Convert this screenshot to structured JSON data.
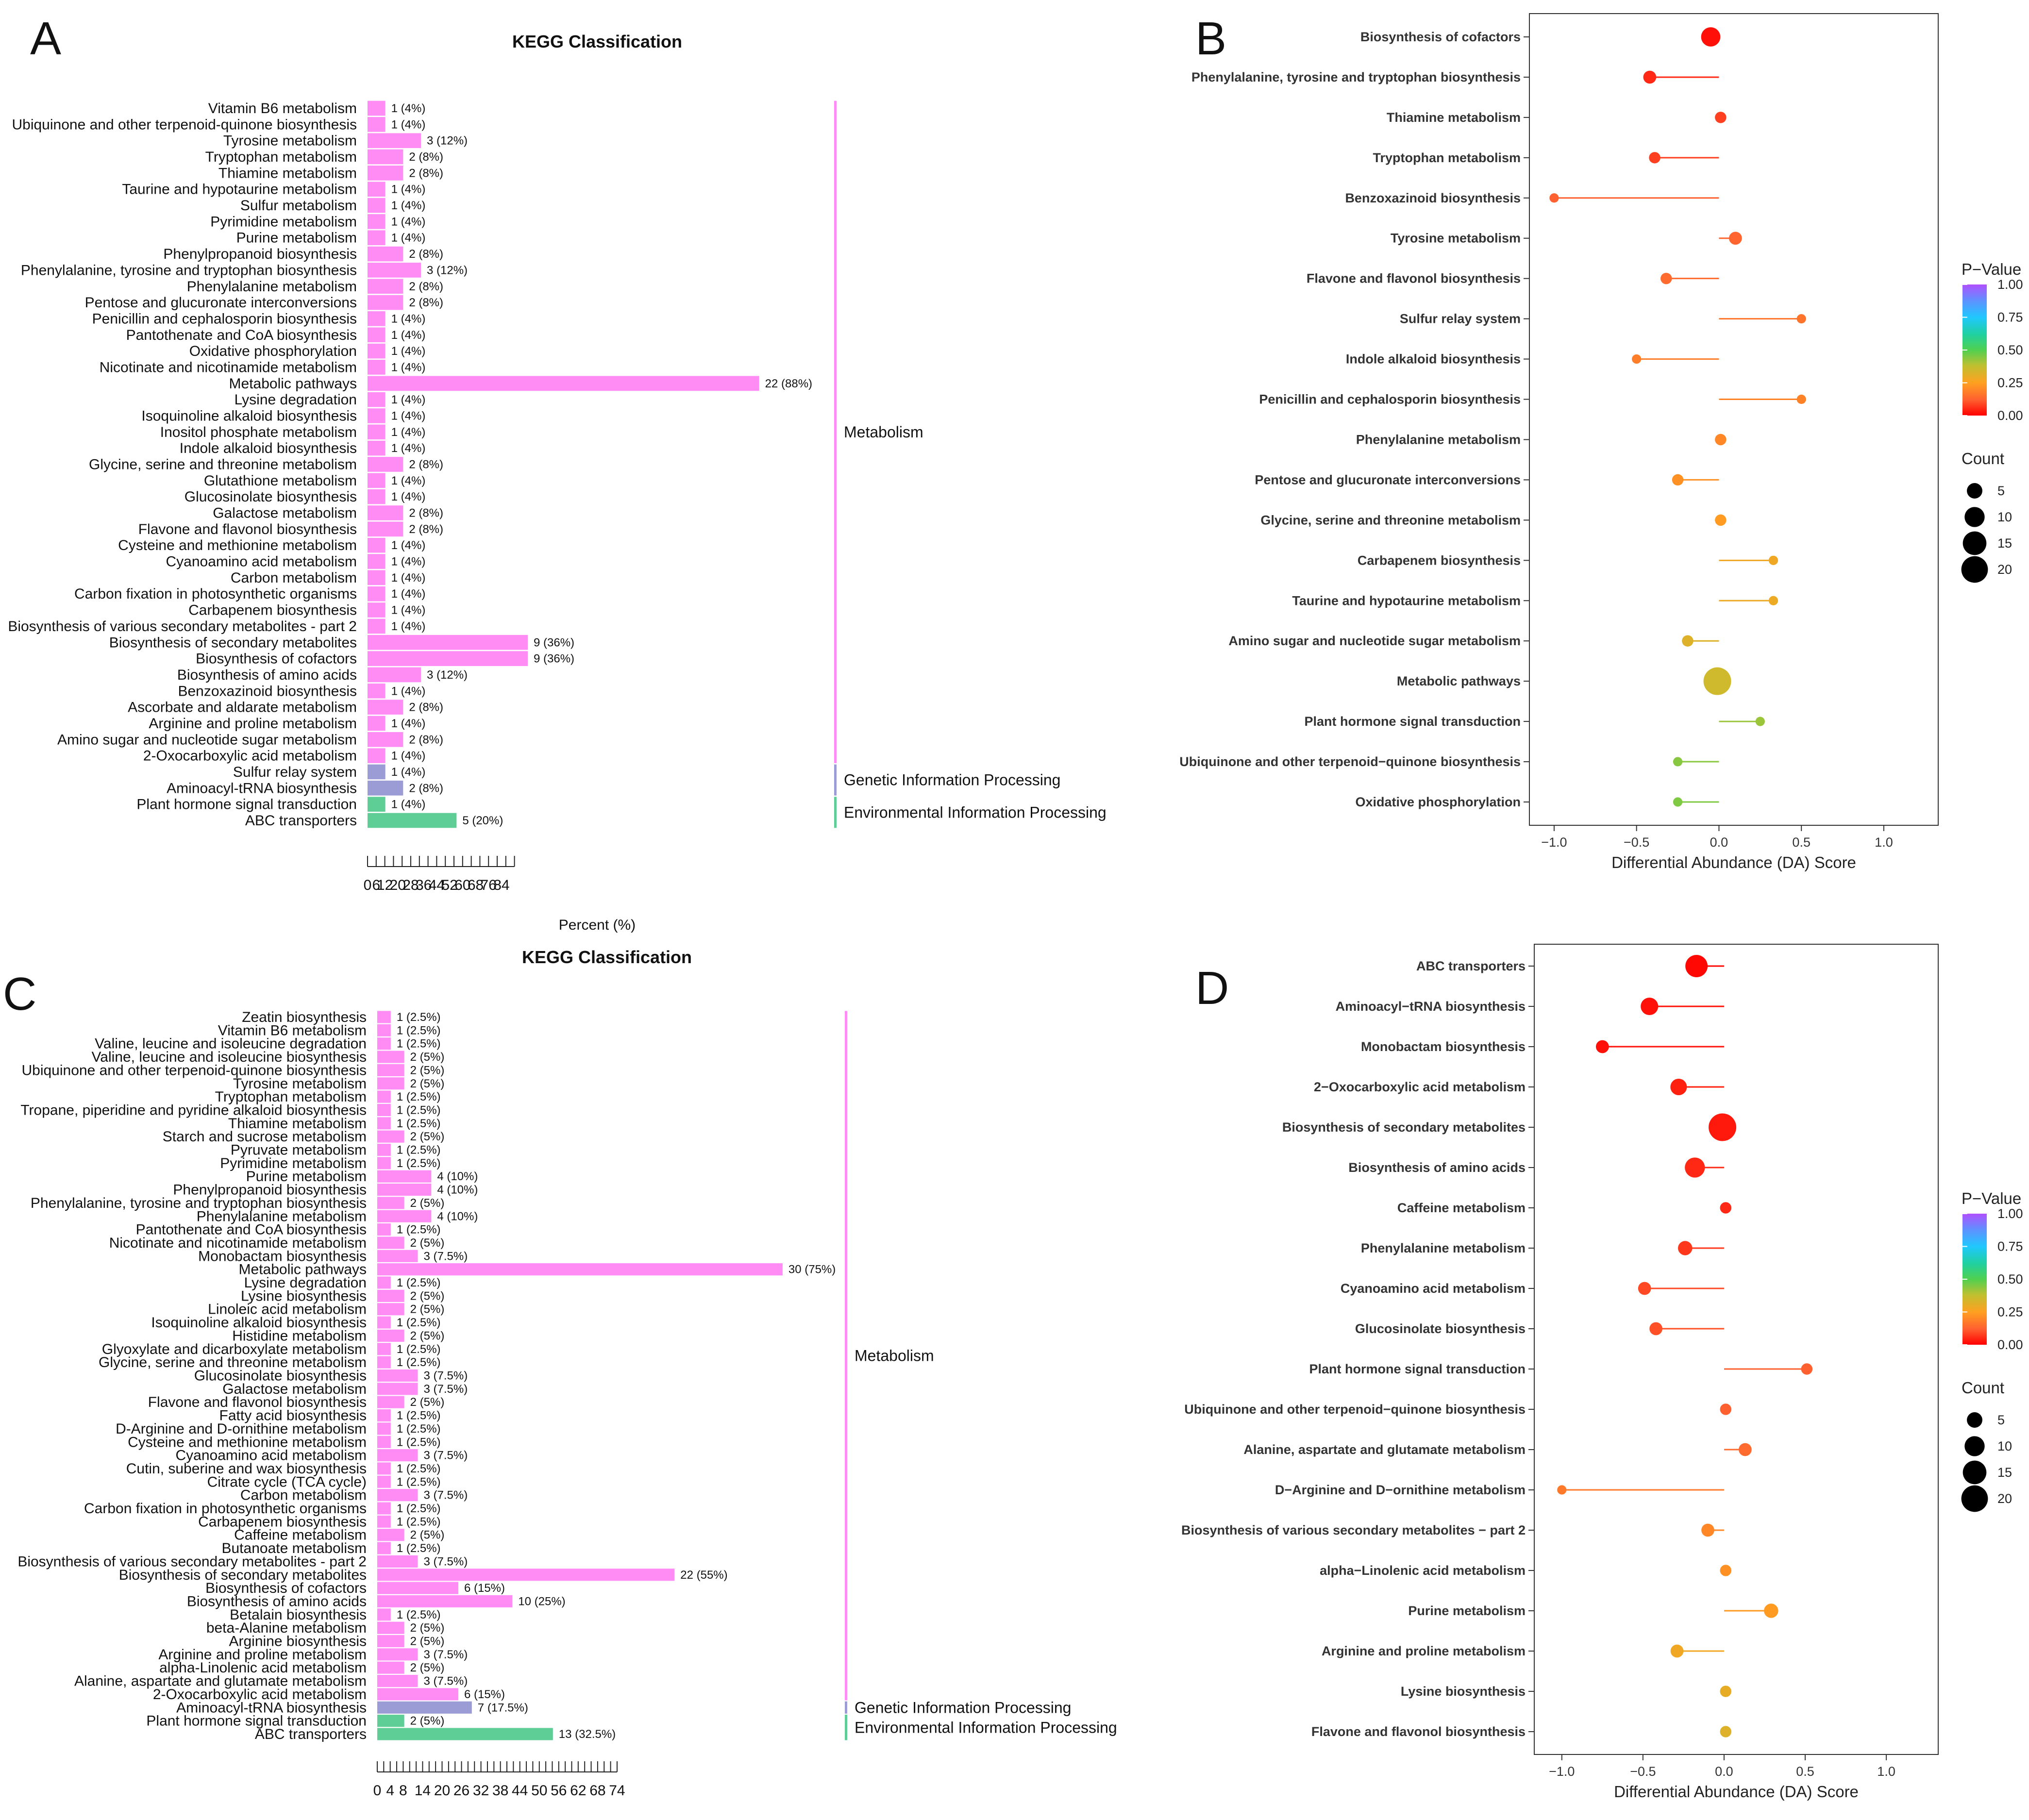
{
  "colors": {
    "metabolism": "#ff8cf5",
    "genetic": "#9b9bd5",
    "environmental": "#5fce96",
    "frame": "#333333"
  },
  "chart_data": [
    {
      "panel": "A",
      "type": "bar",
      "title": "KEGG Classification",
      "xlabel": "Percent (%)",
      "xticks": [
        "0",
        "6",
        "12",
        "20",
        "28",
        "36",
        "44",
        "52",
        "60",
        "68",
        "76",
        "84"
      ],
      "xlim": [
        0,
        90
      ],
      "categories": [
        "Vitamin B6 metabolism",
        "Ubiquinone and other terpenoid-quinone biosynthesis",
        "Tyrosine metabolism",
        "Tryptophan metabolism",
        "Thiamine metabolism",
        "Taurine and hypotaurine metabolism",
        "Sulfur metabolism",
        "Pyrimidine metabolism",
        "Purine metabolism",
        "Phenylpropanoid biosynthesis",
        "Phenylalanine, tyrosine and tryptophan biosynthesis",
        "Phenylalanine metabolism",
        "Pentose and glucuronate interconversions",
        "Penicillin and cephalosporin biosynthesis",
        "Pantothenate and CoA biosynthesis",
        "Oxidative phosphorylation",
        "Nicotinate and nicotinamide metabolism",
        "Metabolic pathways",
        "Lysine degradation",
        "Isoquinoline alkaloid biosynthesis",
        "Inositol phosphate metabolism",
        "Indole alkaloid biosynthesis",
        "Glycine, serine and threonine metabolism",
        "Glutathione metabolism",
        "Glucosinolate biosynthesis",
        "Galactose metabolism",
        "Flavone and flavonol biosynthesis",
        "Cysteine and methionine metabolism",
        "Cyanoamino acid metabolism",
        "Carbon metabolism",
        "Carbon fixation in photosynthetic organisms",
        "Carbapenem biosynthesis",
        "Biosynthesis of various secondary metabolites - part 2",
        "Biosynthesis of secondary metabolites",
        "Biosynthesis of cofactors",
        "Biosynthesis of amino acids",
        "Benzoxazinoid biosynthesis",
        "Ascorbate and aldarate metabolism",
        "Arginine and proline metabolism",
        "Amino sugar and nucleotide sugar metabolism",
        "2-Oxocarboxylic acid metabolism",
        "Sulfur relay system",
        "Aminoacyl-tRNA biosynthesis",
        "Plant hormone signal transduction",
        "ABC transporters"
      ],
      "values": [
        4,
        4,
        12,
        8,
        8,
        4,
        4,
        4,
        4,
        8,
        12,
        8,
        8,
        4,
        4,
        4,
        4,
        88,
        4,
        4,
        4,
        4,
        8,
        4,
        4,
        8,
        8,
        4,
        4,
        4,
        4,
        4,
        4,
        36,
        36,
        12,
        4,
        8,
        4,
        8,
        4,
        4,
        8,
        4,
        20
      ],
      "labels": [
        "1 (4%)",
        "1 (4%)",
        "3 (12%)",
        "2 (8%)",
        "2 (8%)",
        "1 (4%)",
        "1 (4%)",
        "1 (4%)",
        "1 (4%)",
        "2 (8%)",
        "3 (12%)",
        "2 (8%)",
        "2 (8%)",
        "1 (4%)",
        "1 (4%)",
        "1 (4%)",
        "1 (4%)",
        "22 (88%)",
        "1 (4%)",
        "1 (4%)",
        "1 (4%)",
        "1 (4%)",
        "2 (8%)",
        "1 (4%)",
        "1 (4%)",
        "2 (8%)",
        "2 (8%)",
        "1 (4%)",
        "1 (4%)",
        "1 (4%)",
        "1 (4%)",
        "1 (4%)",
        "1 (4%)",
        "9 (36%)",
        "9 (36%)",
        "3 (12%)",
        "1 (4%)",
        "2 (8%)",
        "1 (4%)",
        "2 (8%)",
        "1 (4%)",
        "1 (4%)",
        "2 (8%)",
        "1 (4%)",
        "5 (20%)"
      ],
      "classes": {
        "Metabolism": [
          0,
          40
        ],
        "Genetic Information Processing": [
          41,
          42
        ],
        "Environmental Information Processing": [
          43,
          44
        ]
      }
    },
    {
      "panel": "B",
      "type": "scatter",
      "xlabel": "Differential Abundance (DA) Score",
      "xticks": [
        "−1.0",
        "−0.5",
        "0.0",
        "0.5",
        "1.0"
      ],
      "xlim": [
        -1.15,
        1.33
      ],
      "categories": [
        "Biosynthesis of cofactors",
        "Phenylalanine, tyrosine and tryptophan biosynthesis",
        "Thiamine metabolism",
        "Tryptophan metabolism",
        "Benzoxazinoid biosynthesis",
        "Tyrosine metabolism",
        "Flavone and flavonol biosynthesis",
        "Sulfur relay system",
        "Indole alkaloid biosynthesis",
        "Penicillin and cephalosporin biosynthesis",
        "Phenylalanine metabolism",
        "Pentose and glucuronate interconversions",
        "Glycine, serine and threonine metabolism",
        "Carbapenem biosynthesis",
        "Taurine and hypotaurine metabolism",
        "Amino sugar and nucleotide sugar metabolism",
        "Metabolic pathways",
        "Plant hormone signal transduction",
        "Ubiquinone and other terpenoid−quinone biosynthesis",
        "Oxidative phosphorylation"
      ],
      "da": [
        -0.05,
        -0.42,
        0.01,
        -0.39,
        -1.0,
        0.1,
        -0.32,
        0.5,
        -0.5,
        0.5,
        0.01,
        -0.25,
        0.01,
        0.33,
        0.33,
        -0.19,
        -0.01,
        0.25,
        -0.25,
        -0.25
      ],
      "count": [
        9,
        3,
        2,
        2,
        1,
        3,
        2,
        1,
        1,
        1,
        2,
        2,
        2,
        1,
        1,
        2,
        22,
        1,
        1,
        1
      ],
      "pvalue": [
        0.02,
        0.05,
        0.08,
        0.08,
        0.12,
        0.13,
        0.14,
        0.16,
        0.18,
        0.19,
        0.2,
        0.22,
        0.24,
        0.28,
        0.29,
        0.32,
        0.35,
        0.42,
        0.44,
        0.45
      ],
      "legend": {
        "pvalue_title": "P−Value",
        "pvalue_ticks": [
          "1.00",
          "0.75",
          "0.50",
          "0.25",
          "0.00"
        ],
        "count_title": "Count",
        "count_ticks": [
          "5",
          "10",
          "15",
          "20"
        ]
      }
    },
    {
      "panel": "C",
      "type": "bar",
      "title": "KEGG Classification",
      "xlabel": "Percent (%)",
      "xticks": [
        "0",
        "4",
        "8",
        "14",
        "20",
        "26",
        "32",
        "38",
        "44",
        "50",
        "56",
        "62",
        "68",
        "74"
      ],
      "xlim": [
        0,
        76
      ],
      "categories": [
        "Zeatin biosynthesis",
        "Vitamin B6 metabolism",
        "Valine, leucine and isoleucine degradation",
        "Valine, leucine and isoleucine biosynthesis",
        "Ubiquinone and other terpenoid-quinone biosynthesis",
        "Tyrosine metabolism",
        "Tryptophan metabolism",
        "Tropane, piperidine and pyridine alkaloid biosynthesis",
        "Thiamine metabolism",
        "Starch and sucrose metabolism",
        "Pyruvate metabolism",
        "Pyrimidine metabolism",
        "Purine metabolism",
        "Phenylpropanoid biosynthesis",
        "Phenylalanine, tyrosine and tryptophan biosynthesis",
        "Phenylalanine metabolism",
        "Pantothenate and CoA biosynthesis",
        "Nicotinate and nicotinamide metabolism",
        "Monobactam biosynthesis",
        "Metabolic pathways",
        "Lysine degradation",
        "Lysine biosynthesis",
        "Linoleic acid metabolism",
        "Isoquinoline alkaloid biosynthesis",
        "Histidine metabolism",
        "Glyoxylate and dicarboxylate metabolism",
        "Glycine, serine and threonine metabolism",
        "Glucosinolate biosynthesis",
        "Galactose metabolism",
        "Flavone and flavonol biosynthesis",
        "Fatty acid biosynthesis",
        "D-Arginine and D-ornithine metabolism",
        "Cysteine and methionine metabolism",
        "Cyanoamino acid metabolism",
        "Cutin, suberine and wax biosynthesis",
        "Citrate cycle (TCA cycle)",
        "Carbon metabolism",
        "Carbon fixation in photosynthetic organisms",
        "Carbapenem biosynthesis",
        "Caffeine metabolism",
        "Butanoate metabolism",
        "Biosynthesis of various secondary metabolites - part 2",
        "Biosynthesis of secondary metabolites",
        "Biosynthesis of cofactors",
        "Biosynthesis of amino acids",
        "Betalain biosynthesis",
        "beta-Alanine metabolism",
        "Arginine biosynthesis",
        "Arginine and proline metabolism",
        "alpha-Linolenic acid metabolism",
        "Alanine, aspartate and glutamate metabolism",
        "2-Oxocarboxylic acid metabolism",
        "Aminoacyl-tRNA biosynthesis",
        "Plant hormone signal transduction",
        "ABC transporters"
      ],
      "values": [
        2.5,
        2.5,
        2.5,
        5,
        5,
        5,
        2.5,
        2.5,
        2.5,
        5,
        2.5,
        2.5,
        10,
        10,
        5,
        10,
        2.5,
        5,
        7.5,
        75,
        2.5,
        5,
        5,
        2.5,
        5,
        2.5,
        2.5,
        7.5,
        7.5,
        5,
        2.5,
        2.5,
        2.5,
        7.5,
        2.5,
        2.5,
        7.5,
        2.5,
        2.5,
        5,
        2.5,
        7.5,
        55,
        15,
        25,
        2.5,
        5,
        5,
        7.5,
        5,
        7.5,
        15,
        17.5,
        5,
        32.5
      ],
      "labels": [
        "1 (2.5%)",
        "1 (2.5%)",
        "1 (2.5%)",
        "2 (5%)",
        "2 (5%)",
        "2 (5%)",
        "1 (2.5%)",
        "1 (2.5%)",
        "1 (2.5%)",
        "2 (5%)",
        "1 (2.5%)",
        "1 (2.5%)",
        "4 (10%)",
        "4 (10%)",
        "2 (5%)",
        "4 (10%)",
        "1 (2.5%)",
        "2 (5%)",
        "3 (7.5%)",
        "30 (75%)",
        "1 (2.5%)",
        "2 (5%)",
        "2 (5%)",
        "1 (2.5%)",
        "2 (5%)",
        "1 (2.5%)",
        "1 (2.5%)",
        "3 (7.5%)",
        "3 (7.5%)",
        "2 (5%)",
        "1 (2.5%)",
        "1 (2.5%)",
        "1 (2.5%)",
        "3 (7.5%)",
        "1 (2.5%)",
        "1 (2.5%)",
        "3 (7.5%)",
        "1 (2.5%)",
        "1 (2.5%)",
        "2 (5%)",
        "1 (2.5%)",
        "3 (7.5%)",
        "22 (55%)",
        "6 (15%)",
        "10 (25%)",
        "1 (2.5%)",
        "2 (5%)",
        "2 (5%)",
        "3 (7.5%)",
        "2 (5%)",
        "3 (7.5%)",
        "6 (15%)",
        "7 (17.5%)",
        "2 (5%)",
        "13 (32.5%)"
      ],
      "classes": {
        "Metabolism": [
          0,
          51
        ],
        "Genetic Information Processing": [
          52,
          52
        ],
        "Environmental Information Processing": [
          53,
          54
        ]
      }
    },
    {
      "panel": "D",
      "type": "scatter",
      "xlabel": "Differential Abundance (DA) Score",
      "xticks": [
        "−1.0",
        "−0.5",
        "0.0",
        "0.5",
        "1.0"
      ],
      "xlim": [
        -1.17,
        1.32
      ],
      "categories": [
        "ABC transporters",
        "Aminoacyl−tRNA biosynthesis",
        "Monobactam biosynthesis",
        "2−Oxocarboxylic acid metabolism",
        "Biosynthesis of secondary metabolites",
        "Biosynthesis of amino acids",
        "Caffeine metabolism",
        "Phenylalanine metabolism",
        "Cyanoamino acid metabolism",
        "Glucosinolate biosynthesis",
        "Plant hormone signal transduction",
        "Ubiquinone and other terpenoid−quinone biosynthesis",
        "Alanine, aspartate and glutamate metabolism",
        "D−Arginine and D−ornithine metabolism",
        "Biosynthesis of various secondary metabolites − part 2",
        "alpha−Linolenic acid metabolism",
        "Purine metabolism",
        "Arginine and proline metabolism",
        "Lysine biosynthesis",
        "Flavone and flavonol biosynthesis"
      ],
      "da": [
        -0.17,
        -0.46,
        -0.75,
        -0.28,
        -0.01,
        -0.18,
        0.01,
        -0.24,
        -0.49,
        -0.42,
        0.51,
        0.01,
        0.13,
        -1.0,
        -0.1,
        0.01,
        0.29,
        -0.29,
        0.01,
        0.01
      ],
      "count": [
        13,
        7,
        3,
        6,
        22,
        10,
        2,
        4,
        3,
        3,
        2,
        2,
        3,
        1,
        3,
        2,
        4,
        3,
        2,
        2
      ],
      "pvalue": [
        0.01,
        0.02,
        0.02,
        0.04,
        0.03,
        0.05,
        0.05,
        0.07,
        0.09,
        0.1,
        0.12,
        0.12,
        0.14,
        0.17,
        0.2,
        0.22,
        0.24,
        0.28,
        0.3,
        0.32
      ],
      "legend": {
        "pvalue_title": "P−Value",
        "pvalue_ticks": [
          "1.00",
          "0.75",
          "0.50",
          "0.25",
          "0.00"
        ],
        "count_title": "Count",
        "count_ticks": [
          "5",
          "10",
          "15",
          "20"
        ]
      }
    }
  ],
  "panel_letters": [
    "A",
    "B",
    "C",
    "D"
  ],
  "class_labels": {
    "metabolism": "Metabolism",
    "genetic": "Genetic Information Processing",
    "environmental": "Environmental Information Processing"
  }
}
